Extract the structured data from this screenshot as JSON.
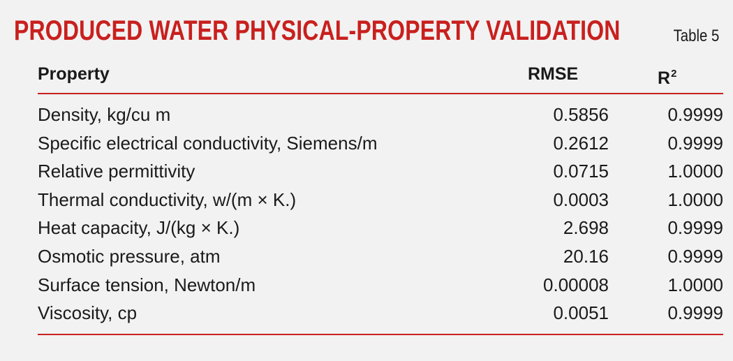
{
  "title": "PRODUCED WATER PHYSICAL-PROPERTY VALIDATION",
  "table_label": "Table 5",
  "columns": {
    "property": "Property",
    "rmse": "RMSE",
    "r2_base": "R",
    "r2_sup": "2"
  },
  "rows": [
    {
      "property": "Density, kg/cu m",
      "rmse": "0.5856",
      "r2": "0.9999"
    },
    {
      "property": "Specific electrical conductivity, Siemens/m",
      "rmse": "0.2612",
      "r2": "0.9999"
    },
    {
      "property": "Relative permittivity",
      "rmse": "0.0715",
      "r2": "1.0000"
    },
    {
      "property": "Thermal conductivity, w/(m × K.)",
      "rmse": "0.0003",
      "r2": "1.0000"
    },
    {
      "property": "Heat capacity, J/(kg × K.)",
      "rmse": "2.698",
      "r2": "0.9999"
    },
    {
      "property": "Osmotic pressure, atm",
      "rmse": "20.16",
      "r2": "0.9999"
    },
    {
      "property": "Surface tension, Newton/m",
      "rmse": "0.00008",
      "r2": "1.0000"
    },
    {
      "property": "Viscosity, cp",
      "rmse": "0.0051",
      "r2": "0.9999"
    }
  ],
  "colors": {
    "accent": "#c8201e",
    "text": "#1a1a1a",
    "background": "#f2f2f2"
  }
}
